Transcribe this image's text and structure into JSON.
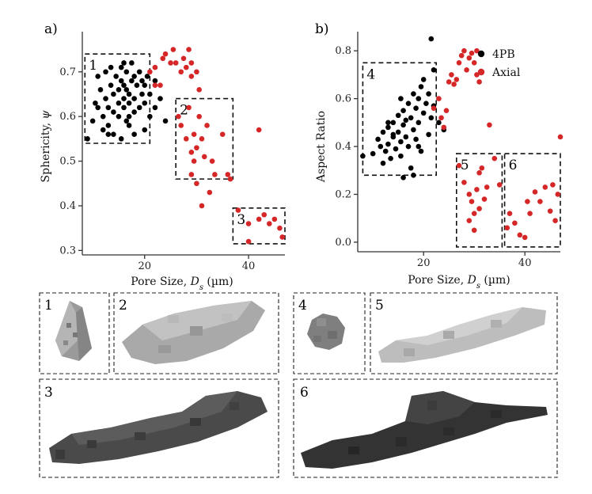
{
  "chart_data": [
    {
      "type": "scatter",
      "panel_label": "a)",
      "xlabel": "Pore Size, ",
      "xlabel_sym": "D",
      "xlabel_sub": "s",
      "xlabel_unit": " (µm)",
      "ylabel": "Sphericity, ",
      "ylabel_sym": "ψ",
      "xlim": [
        8,
        47
      ],
      "ylim": [
        0.29,
        0.79
      ],
      "xticks": [
        20,
        40
      ],
      "yticks": [
        0.3,
        0.4,
        0.5,
        0.6,
        0.7
      ],
      "ytick_labels": [
        "0.3",
        "0.4",
        "0.5",
        "0.6",
        "0.7"
      ],
      "regions": [
        {
          "label": "1",
          "x": [
            8.5,
            21
          ],
          "y": [
            0.54,
            0.74
          ]
        },
        {
          "label": "2",
          "x": [
            26,
            37
          ],
          "y": [
            0.46,
            0.64
          ]
        },
        {
          "label": "3",
          "x": [
            37,
            47
          ],
          "y": [
            0.315,
            0.395
          ]
        }
      ],
      "series": [
        {
          "name": "4PB",
          "color": "#000000",
          "points": [
            [
              9,
              0.55
            ],
            [
              10,
              0.59
            ],
            [
              10.5,
              0.63
            ],
            [
              11,
              0.62
            ],
            [
              11.5,
              0.66
            ],
            [
              12,
              0.57
            ],
            [
              12,
              0.6
            ],
            [
              12.5,
              0.64
            ],
            [
              12.5,
              0.7
            ],
            [
              13,
              0.58
            ],
            [
              13,
              0.62
            ],
            [
              13.5,
              0.67
            ],
            [
              13.5,
              0.71
            ],
            [
              14,
              0.56
            ],
            [
              14,
              0.61
            ],
            [
              14,
              0.65
            ],
            [
              14.5,
              0.69
            ],
            [
              15,
              0.6
            ],
            [
              15,
              0.63
            ],
            [
              15,
              0.66
            ],
            [
              15.5,
              0.55
            ],
            [
              15.5,
              0.68
            ],
            [
              15.5,
              0.71
            ],
            [
              16,
              0.62
            ],
            [
              16,
              0.64
            ],
            [
              16,
              0.67
            ],
            [
              16.5,
              0.59
            ],
            [
              16.5,
              0.66
            ],
            [
              16.5,
              0.7
            ],
            [
              17,
              0.58
            ],
            [
              17,
              0.63
            ],
            [
              17,
              0.65
            ],
            [
              17.5,
              0.68
            ],
            [
              17.5,
              0.72
            ],
            [
              18,
              0.56
            ],
            [
              18,
              0.61
            ],
            [
              18,
              0.64
            ],
            [
              18,
              0.69
            ],
            [
              18.5,
              0.67
            ],
            [
              19,
              0.62
            ],
            [
              19,
              0.7
            ],
            [
              19.5,
              0.65
            ],
            [
              19.5,
              0.68
            ],
            [
              20,
              0.57
            ],
            [
              20,
              0.63
            ],
            [
              20,
              0.67
            ],
            [
              20.5,
              0.69
            ],
            [
              21,
              0.6
            ],
            [
              21,
              0.65
            ],
            [
              22,
              0.68
            ],
            [
              22,
              0.62
            ],
            [
              23,
              0.64
            ],
            [
              24,
              0.59
            ],
            [
              11,
              0.69
            ],
            [
              13,
              0.56
            ],
            [
              16,
              0.72
            ],
            [
              17,
              0.6
            ]
          ]
        },
        {
          "name": "Axial",
          "color": "#d62728",
          "points": [
            [
              21,
              0.7
            ],
            [
              22,
              0.71
            ],
            [
              22,
              0.67
            ],
            [
              23,
              0.67
            ],
            [
              23.5,
              0.73
            ],
            [
              24,
              0.74
            ],
            [
              25,
              0.72
            ],
            [
              25.5,
              0.75
            ],
            [
              26,
              0.72
            ],
            [
              27,
              0.7
            ],
            [
              27.5,
              0.73
            ],
            [
              28,
              0.71
            ],
            [
              28.5,
              0.75
            ],
            [
              29,
              0.69
            ],
            [
              29,
              0.72
            ],
            [
              30,
              0.7
            ],
            [
              30.5,
              0.66
            ],
            [
              26.5,
              0.6
            ],
            [
              27,
              0.58
            ],
            [
              28,
              0.55
            ],
            [
              28.5,
              0.62
            ],
            [
              29,
              0.52
            ],
            [
              29.5,
              0.5
            ],
            [
              29,
              0.47
            ],
            [
              30,
              0.53
            ],
            [
              30,
              0.45
            ],
            [
              30.5,
              0.6
            ],
            [
              31,
              0.55
            ],
            [
              31.5,
              0.51
            ],
            [
              32,
              0.58
            ],
            [
              32.5,
              0.43
            ],
            [
              33,
              0.5
            ],
            [
              33.5,
              0.47
            ],
            [
              35,
              0.56
            ],
            [
              36,
              0.47
            ],
            [
              31,
              0.4
            ],
            [
              29.5,
              0.56
            ],
            [
              38,
              0.39
            ],
            [
              40,
              0.36
            ],
            [
              42,
              0.37
            ],
            [
              43,
              0.38
            ],
            [
              44,
              0.36
            ],
            [
              45,
              0.37
            ],
            [
              46,
              0.35
            ],
            [
              46.5,
              0.33
            ],
            [
              40,
              0.32
            ],
            [
              42,
              0.57
            ],
            [
              36.5,
              0.46
            ]
          ]
        }
      ]
    },
    {
      "type": "scatter",
      "panel_label": "b)",
      "xlabel": "Pore Size, ",
      "xlabel_sym": "D",
      "xlabel_sub": "s",
      "xlabel_unit": " (µm)",
      "ylabel": "Aspect Ratio",
      "xlim": [
        7,
        47
      ],
      "ylim": [
        -0.04,
        0.88
      ],
      "xticks": [
        20,
        40
      ],
      "yticks": [
        0.0,
        0.2,
        0.4,
        0.6,
        0.8
      ],
      "ytick_labels": [
        "0.0",
        "0.2",
        "0.4",
        "0.6",
        "0.8"
      ],
      "legend": [
        {
          "label": "4PB",
          "color": "#000000"
        },
        {
          "label": "Axial",
          "color": "#d62728"
        }
      ],
      "regions": [
        {
          "label": "4",
          "x": [
            8,
            22.5
          ],
          "y": [
            0.28,
            0.75
          ]
        },
        {
          "label": "5",
          "x": [
            26.5,
            35.5
          ],
          "y": [
            -0.02,
            0.37
          ]
        },
        {
          "label": "6",
          "x": [
            36,
            47
          ],
          "y": [
            -0.02,
            0.37
          ]
        }
      ],
      "series": [
        {
          "name": "4PB",
          "color": "#000000",
          "points": [
            [
              8,
              0.36
            ],
            [
              10,
              0.37
            ],
            [
              11,
              0.43
            ],
            [
              11.5,
              0.4
            ],
            [
              12,
              0.46
            ],
            [
              12.5,
              0.38
            ],
            [
              13,
              0.48
            ],
            [
              13,
              0.41
            ],
            [
              13.5,
              0.35
            ],
            [
              14,
              0.44
            ],
            [
              14,
              0.5
            ],
            [
              14.5,
              0.39
            ],
            [
              15,
              0.53
            ],
            [
              15,
              0.46
            ],
            [
              15.5,
              0.42
            ],
            [
              15.5,
              0.36
            ],
            [
              16,
              0.49
            ],
            [
              16,
              0.55
            ],
            [
              16.5,
              0.44
            ],
            [
              17,
              0.58
            ],
            [
              17,
              0.4
            ],
            [
              17.5,
              0.52
            ],
            [
              17.5,
              0.31
            ],
            [
              18,
              0.47
            ],
            [
              18,
              0.62
            ],
            [
              18.5,
              0.56
            ],
            [
              18.5,
              0.43
            ],
            [
              19,
              0.5
            ],
            [
              19,
              0.6
            ],
            [
              19.5,
              0.65
            ],
            [
              19.5,
              0.38
            ],
            [
              20,
              0.54
            ],
            [
              20,
              0.68
            ],
            [
              20.5,
              0.58
            ],
            [
              21,
              0.62
            ],
            [
              21,
              0.45
            ],
            [
              21.5,
              0.52
            ],
            [
              22,
              0.72
            ],
            [
              22,
              0.57
            ],
            [
              23,
              0.5
            ],
            [
              24,
              0.47
            ],
            [
              21.5,
              0.85
            ],
            [
              16,
              0.27
            ],
            [
              18,
              0.28
            ],
            [
              12,
              0.33
            ],
            [
              14,
              0.45
            ],
            [
              16.5,
              0.51
            ],
            [
              19,
              0.4
            ],
            [
              13,
              0.5
            ],
            [
              15.5,
              0.6
            ]
          ]
        },
        {
          "name": "Axial",
          "color": "#d62728",
          "points": [
            [
              22,
              0.56
            ],
            [
              23,
              0.6
            ],
            [
              23.5,
              0.52
            ],
            [
              24,
              0.48
            ],
            [
              24.5,
              0.55
            ],
            [
              25,
              0.67
            ],
            [
              25.5,
              0.7
            ],
            [
              26,
              0.66
            ],
            [
              26.5,
              0.68
            ],
            [
              27,
              0.75
            ],
            [
              27.5,
              0.78
            ],
            [
              28,
              0.8
            ],
            [
              28.5,
              0.72
            ],
            [
              29,
              0.77
            ],
            [
              29.5,
              0.79
            ],
            [
              30,
              0.75
            ],
            [
              30.5,
              0.8
            ],
            [
              30.5,
              0.7
            ],
            [
              31,
              0.67
            ],
            [
              33,
              0.49
            ],
            [
              27,
              0.32
            ],
            [
              28,
              0.25
            ],
            [
              29,
              0.2
            ],
            [
              29.5,
              0.17
            ],
            [
              30,
              0.12
            ],
            [
              30.5,
              0.22
            ],
            [
              31,
              0.29
            ],
            [
              31.5,
              0.31
            ],
            [
              32,
              0.18
            ],
            [
              32.5,
              0.23
            ],
            [
              30,
              0.05
            ],
            [
              31,
              0.14
            ],
            [
              29,
              0.09
            ],
            [
              34,
              0.35
            ],
            [
              35,
              0.24
            ],
            [
              37,
              0.12
            ],
            [
              38,
              0.08
            ],
            [
              39,
              0.03
            ],
            [
              40,
              0.02
            ],
            [
              40.5,
              0.17
            ],
            [
              41,
              0.12
            ],
            [
              42,
              0.21
            ],
            [
              43,
              0.17
            ],
            [
              44,
              0.23
            ],
            [
              45,
              0.13
            ],
            [
              45.5,
              0.24
            ],
            [
              46.5,
              0.2
            ],
            [
              46,
              0.09
            ],
            [
              47,
              0.44
            ],
            [
              36.5,
              0.06
            ]
          ]
        }
      ]
    }
  ],
  "renders": [
    {
      "label": "1",
      "shade": "#9a9a9a"
    },
    {
      "label": "2",
      "shade": "#a6a6a6"
    },
    {
      "label": "3",
      "shade": "#4a4a4a"
    },
    {
      "label": "4",
      "shade": "#7f7f7f"
    },
    {
      "label": "5",
      "shade": "#bdbdbd"
    },
    {
      "label": "6",
      "shade": "#333333"
    }
  ]
}
